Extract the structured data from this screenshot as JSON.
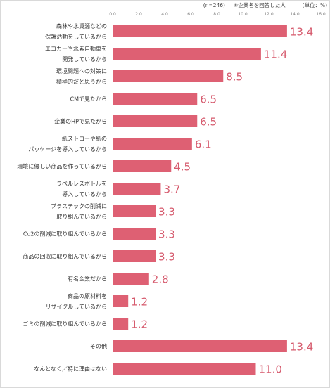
{
  "header": {
    "sample": "(n=246)",
    "note": "※企業名を回答した人",
    "unit": "(単位：%)"
  },
  "colors": {
    "bar": "#de6073",
    "value_label": "#d65b6e"
  },
  "chart_data": {
    "type": "bar",
    "orientation": "horizontal",
    "categories": [
      [
        "森林や水資源などの",
        "保護活動をしているから"
      ],
      [
        "エコカーや水素自動車を",
        "開発しているから"
      ],
      [
        "環境問題への対策に",
        "積極的だと思うから"
      ],
      [
        "CMで見たから"
      ],
      [
        "企業のHPで見たから"
      ],
      [
        "紙ストローや紙の",
        "パッケージを導入しているから"
      ],
      [
        "環境に優しい商品を作っているから"
      ],
      [
        "ラベルレスボトルを",
        "導入しているから"
      ],
      [
        "プラスチックの削減に",
        "取り組んでいるから"
      ],
      [
        "Co2の削減に取り組んでいるから"
      ],
      [
        "商品の回収に取り組んでいるから"
      ],
      [
        "有名企業だから"
      ],
      [
        "商品の原材料を",
        "リサイクルしているから"
      ],
      [
        "ゴミの削減に取り組んでいるから"
      ],
      [
        "その他"
      ],
      [
        "なんとなく／特に理由はない"
      ]
    ],
    "values": [
      13.4,
      11.4,
      8.5,
      6.5,
      6.5,
      6.1,
      4.5,
      3.7,
      3.3,
      3.3,
      3.3,
      2.8,
      1.2,
      1.2,
      13.4,
      11.0
    ],
    "value_labels": [
      "13.4",
      "11.4",
      "8.5",
      "6.5",
      "6.5",
      "6.1",
      "4.5",
      "3.7",
      "3.3",
      "3.3",
      "3.3",
      "2.8",
      "1.2",
      "1.2",
      "13.4",
      "11.0"
    ],
    "x_ticks": [
      "0.0",
      "2.0",
      "4.0",
      "6.0",
      "8.0",
      "10.0",
      "12.0",
      "14.0",
      "16.0"
    ],
    "xlim": [
      0,
      16
    ],
    "grid": false,
    "legend": "none"
  }
}
